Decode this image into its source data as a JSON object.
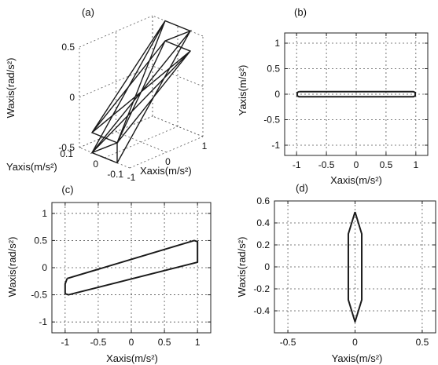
{
  "chart_data": [
    {
      "panel": "(a)",
      "type": "line",
      "title": "(a)",
      "xlabel": "Xaxis(m/s²)",
      "ylabel": "Yaxis(m/s²)",
      "zlabel": "Waxis(rad/s²)",
      "xlim": [
        -1,
        1
      ],
      "ylim": [
        -0.1,
        0.1
      ],
      "zlim": [
        -0.5,
        0.5
      ],
      "xticks": [
        "-1",
        "0",
        "1"
      ],
      "yticks": [
        "-0.1",
        "0",
        "0.1"
      ],
      "zticks": [
        "-0.5",
        "0",
        "0.5"
      ],
      "grid": true,
      "series": [
        {
          "points": [
            {
              "x": -1,
              "y": -0.05,
              "z": -0.5
            },
            {
              "x": 1,
              "y": -0.05,
              "z": 0.5
            },
            {
              "x": 1,
              "y": 0.05,
              "z": 0.5
            },
            {
              "x": -1,
              "y": 0.05,
              "z": -0.5
            },
            {
              "x": -1,
              "y": -0.05,
              "z": -0.5
            },
            {
              "x": -1,
              "y": -0.05,
              "z": -0.3
            },
            {
              "x": 1,
              "y": -0.05,
              "z": 0.3
            },
            {
              "x": 1,
              "y": 0.05,
              "z": 0.3
            },
            {
              "x": -1,
              "y": 0.05,
              "z": -0.3
            },
            {
              "x": -1,
              "y": -0.05,
              "z": -0.3
            },
            {
              "x": -1,
              "y": 0.05,
              "z": -0.5
            },
            {
              "x": 1,
              "y": -0.05,
              "z": 0.5
            },
            {
              "x": 1,
              "y": 0.05,
              "z": 0.3
            },
            {
              "x": -1,
              "y": -0.05,
              "z": -0.3
            },
            {
              "x": 1,
              "y": 0.05,
              "z": 0.5
            },
            {
              "x": -1,
              "y": 0.05,
              "z": -0.3
            },
            {
              "x": 1,
              "y": -0.05,
              "z": 0.3
            },
            {
              "x": -1,
              "y": 0.05,
              "z": -0.5
            }
          ]
        }
      ]
    },
    {
      "panel": "(b)",
      "type": "line",
      "title": "(b)",
      "xlabel": "Xaxis(m/s²)",
      "ylabel": "Yaxis(m/s²)",
      "xlim": [
        -1.2,
        1.2
      ],
      "ylim": [
        -1.2,
        1.2
      ],
      "xticks": [
        "-1",
        "-0.5",
        "0",
        "0.5",
        "1"
      ],
      "yticks": [
        "-1",
        "-0.5",
        "0",
        "0.5",
        "1"
      ],
      "grid": true,
      "series": [
        {
          "x": [
            -0.96,
            0.96,
            0.99,
            0.99,
            0.96,
            -0.96,
            -0.99,
            -0.99,
            -0.96
          ],
          "y": [
            0.05,
            0.05,
            0.03,
            -0.03,
            -0.05,
            -0.05,
            -0.03,
            0.03,
            0.05
          ]
        }
      ]
    },
    {
      "panel": "(c)",
      "type": "line",
      "title": "(c)",
      "xlabel": "Xaxis(m/s²)",
      "ylabel": "Waxis(rad/s²)",
      "xlim": [
        -1.2,
        1.2
      ],
      "ylim": [
        -1.2,
        1.2
      ],
      "xticks": [
        "-1",
        "-0.5",
        "0",
        "0.5",
        "1"
      ],
      "yticks": [
        "-1",
        "-0.5",
        "0",
        "0.5",
        "1"
      ],
      "grid": true,
      "series": [
        {
          "x": [
            -0.97,
            0.95,
            1.0,
            1.0,
            -0.95,
            -1.0,
            -1.0,
            -0.97
          ],
          "y": [
            -0.2,
            0.5,
            0.48,
            0.1,
            -0.5,
            -0.48,
            -0.3,
            -0.2
          ]
        }
      ]
    },
    {
      "panel": "(d)",
      "type": "line",
      "title": "(d)",
      "xlabel": "Yaxis(m/s²)",
      "ylabel": "Waxis(rad/s²)",
      "xlim": [
        -0.6,
        0.6
      ],
      "ylim": [
        -0.6,
        0.6
      ],
      "xticks": [
        "-0.5",
        "0",
        "0.5"
      ],
      "yticks": [
        "-0.4",
        "-0.2",
        "0",
        "0.2",
        "0.4",
        "0.6"
      ],
      "grid": true,
      "series": [
        {
          "x": [
            0,
            0.05,
            0.05,
            0,
            -0.05,
            -0.05,
            0
          ],
          "y": [
            0.5,
            0.3,
            -0.3,
            -0.5,
            -0.3,
            0.3,
            0.5
          ]
        }
      ]
    }
  ]
}
